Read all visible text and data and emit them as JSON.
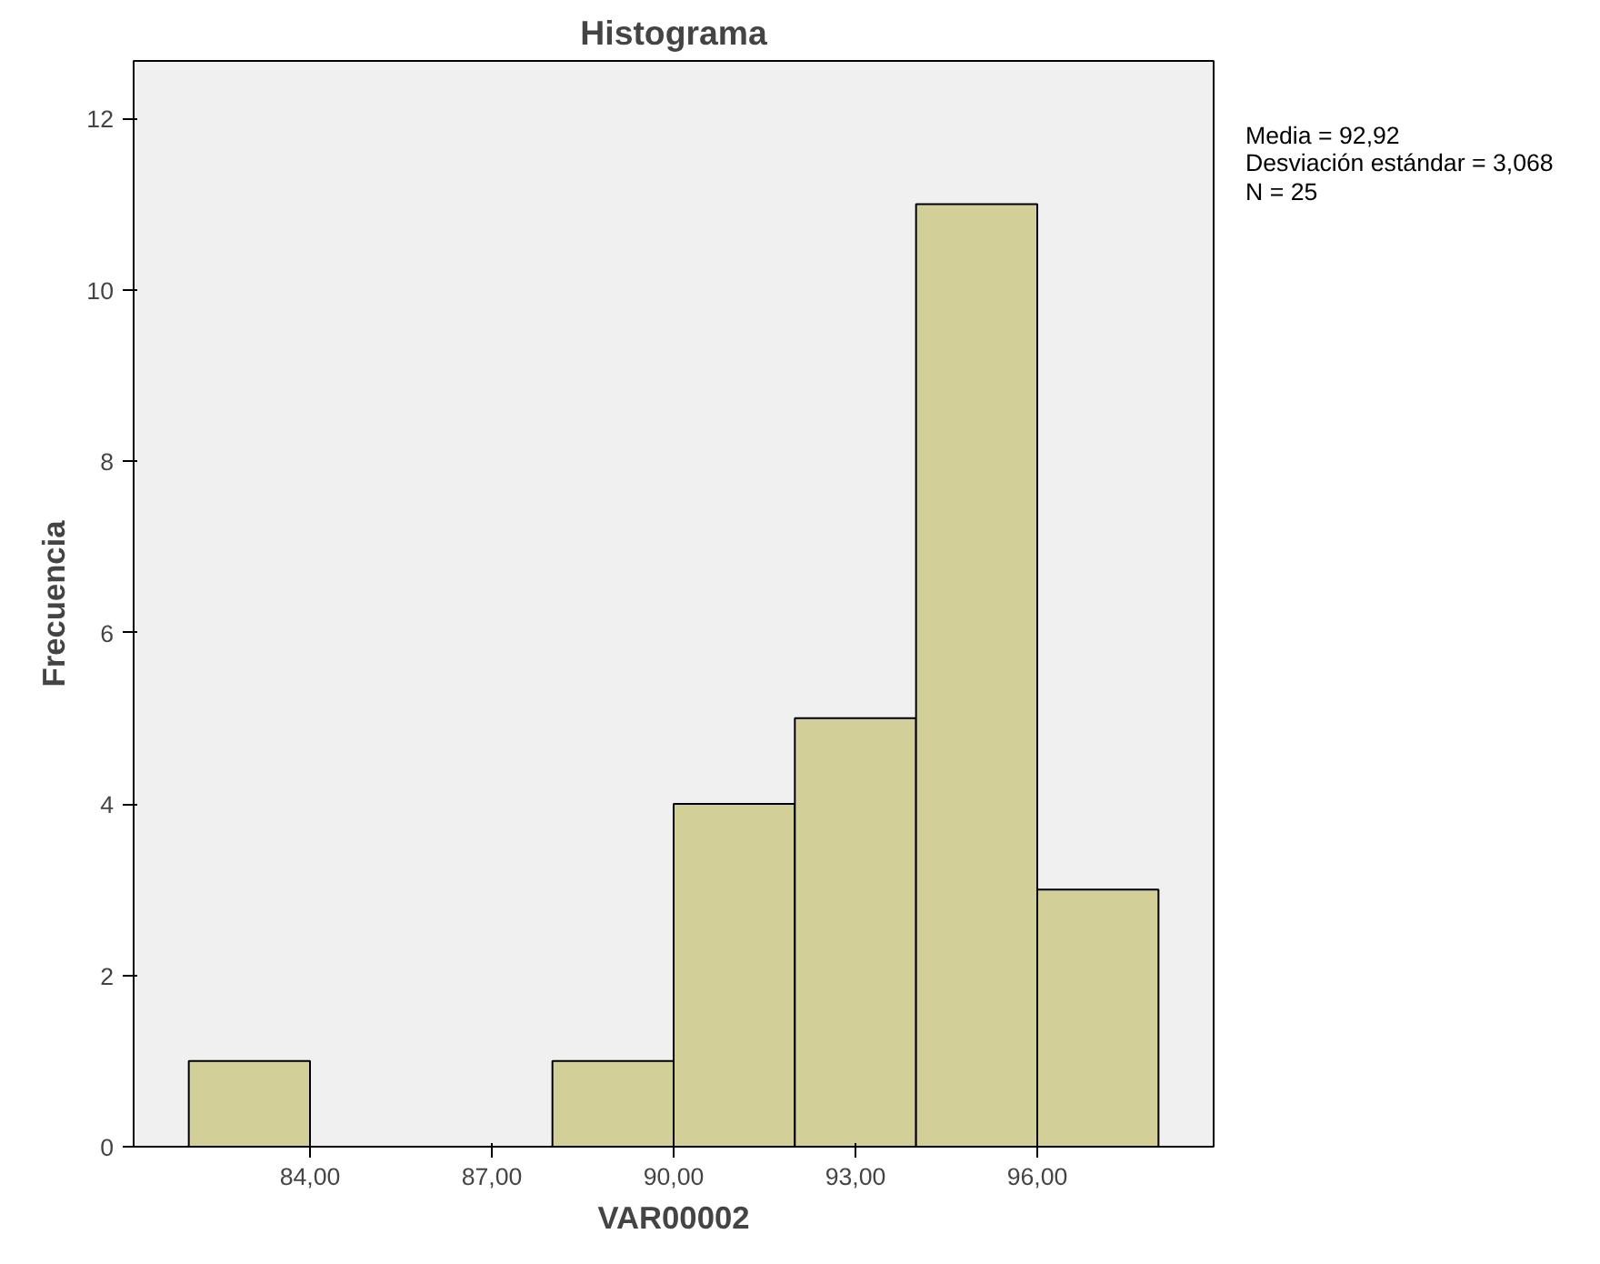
{
  "chart_data": {
    "type": "histogram",
    "title": "Histograma",
    "xlabel": "VAR00002",
    "ylabel": "Frecuencia",
    "bins": [
      82,
      84,
      86,
      88,
      90,
      92,
      94,
      96,
      98
    ],
    "values": [
      1,
      0,
      0,
      1,
      4,
      5,
      11,
      3
    ],
    "color": "#d3cf98",
    "xlim": [
      81.09,
      98.91
    ],
    "ylim": [
      0,
      12.67
    ],
    "xticks": [
      {
        "value": 84,
        "label": "84,00"
      },
      {
        "value": 87,
        "label": "87,00"
      },
      {
        "value": 90,
        "label": "90,00"
      },
      {
        "value": 93,
        "label": "93,00"
      },
      {
        "value": 96,
        "label": "96,00"
      }
    ],
    "yticks": [
      0,
      2,
      4,
      6,
      8,
      10,
      12
    ],
    "grid": false,
    "annotations": [
      "Media = 92,92",
      "Desviación estándar = 3,068",
      "N = 25"
    ]
  }
}
